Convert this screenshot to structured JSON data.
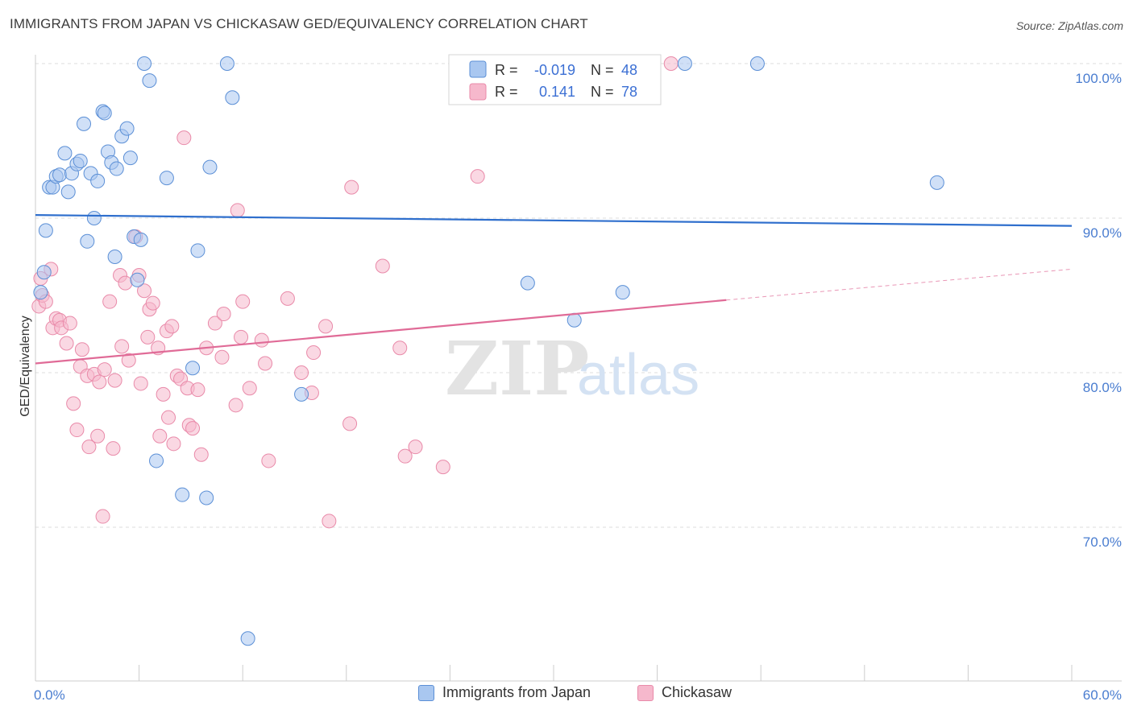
{
  "header": {
    "title": "IMMIGRANTS FROM JAPAN VS CHICKASAW GED/EQUIVALENCY CORRELATION CHART",
    "source": "Source: ZipAtlas.com"
  },
  "legend_top": {
    "rows": [
      {
        "r_label": "R =",
        "r_value": "-0.019",
        "n_label": "N =",
        "n_value": "48"
      },
      {
        "r_label": "R =",
        "r_value": "0.141",
        "n_label": "N =",
        "n_value": "78"
      }
    ]
  },
  "legend_bottom": {
    "items": [
      "Immigrants from Japan",
      "Chickasaw"
    ]
  },
  "watermark": {
    "zip": "ZIP",
    "atlas": "atlas"
  },
  "colors": {
    "japan_fill": "#a9c7f0",
    "japan_stroke": "#5b8fd6",
    "japan_line": "#2f6fcd",
    "chickasaw_fill": "#f6b8cc",
    "chickasaw_stroke": "#e98aa9",
    "chickasaw_line": "#e06b97",
    "tick_text": "#4a7dd0",
    "grid": "#dddddd"
  },
  "chart_data": {
    "type": "scatter",
    "title": "IMMIGRANTS FROM JAPAN VS CHICKASAW GED/EQUIVALENCY CORRELATION CHART",
    "ylabel": "GED/Equivalency",
    "xlabel": "",
    "xlim": [
      0,
      60
    ],
    "ylim": [
      61.5,
      101.5
    ],
    "y_ticks": [
      70,
      80,
      90,
      100
    ],
    "y_tick_labels": [
      "70.0%",
      "80.0%",
      "90.0%",
      "100.0%"
    ],
    "x_tick_labels": [
      "0.0%",
      "60.0%"
    ],
    "grid": true,
    "legend_position": "top-center",
    "series": [
      {
        "name": "Immigrants from Japan",
        "R": -0.019,
        "N": 48,
        "trend": {
          "x": [
            0,
            60
          ],
          "y": [
            90.2,
            89.5
          ]
        },
        "points": [
          [
            0.3,
            85.2
          ],
          [
            0.5,
            86.5
          ],
          [
            0.6,
            89.2
          ],
          [
            0.8,
            92.0
          ],
          [
            1.0,
            92.0
          ],
          [
            1.2,
            92.7
          ],
          [
            1.4,
            92.8
          ],
          [
            1.7,
            94.2
          ],
          [
            1.9,
            91.7
          ],
          [
            2.1,
            92.9
          ],
          [
            2.4,
            93.5
          ],
          [
            2.6,
            93.7
          ],
          [
            2.8,
            96.1
          ],
          [
            3.0,
            88.5
          ],
          [
            3.2,
            92.9
          ],
          [
            3.4,
            90.0
          ],
          [
            3.6,
            92.4
          ],
          [
            3.9,
            96.9
          ],
          [
            4.0,
            96.8
          ],
          [
            4.2,
            94.3
          ],
          [
            4.4,
            93.6
          ],
          [
            4.6,
            87.5
          ],
          [
            4.7,
            93.2
          ],
          [
            5.0,
            95.3
          ],
          [
            5.3,
            95.8
          ],
          [
            5.5,
            93.9
          ],
          [
            5.7,
            88.8
          ],
          [
            5.9,
            86.0
          ],
          [
            6.1,
            88.6
          ],
          [
            6.3,
            100.0
          ],
          [
            6.6,
            98.9
          ],
          [
            7.0,
            74.3
          ],
          [
            7.6,
            92.6
          ],
          [
            8.5,
            72.1
          ],
          [
            9.1,
            80.3
          ],
          [
            9.4,
            87.9
          ],
          [
            9.9,
            71.9
          ],
          [
            10.1,
            93.3
          ],
          [
            11.1,
            100.0
          ],
          [
            11.4,
            97.8
          ],
          [
            12.3,
            62.8
          ],
          [
            15.4,
            78.6
          ],
          [
            28.5,
            85.8
          ],
          [
            31.2,
            83.4
          ],
          [
            34.0,
            85.2
          ],
          [
            37.6,
            100.0
          ],
          [
            41.8,
            100.0
          ],
          [
            52.2,
            92.3
          ]
        ]
      },
      {
        "name": "Chickasaw",
        "R": 0.141,
        "N": 78,
        "trend": {
          "x": [
            0,
            40
          ],
          "y": [
            80.6,
            84.7
          ]
        },
        "trend_dashed": {
          "x": [
            40,
            60
          ],
          "y": [
            84.7,
            86.7
          ]
        },
        "points": [
          [
            0.2,
            84.3
          ],
          [
            0.3,
            86.1
          ],
          [
            0.4,
            85.0
          ],
          [
            0.6,
            84.6
          ],
          [
            0.9,
            86.7
          ],
          [
            1.0,
            82.9
          ],
          [
            1.2,
            83.5
          ],
          [
            1.4,
            83.4
          ],
          [
            1.5,
            82.9
          ],
          [
            1.8,
            81.9
          ],
          [
            2.0,
            83.2
          ],
          [
            2.2,
            78.0
          ],
          [
            2.4,
            76.3
          ],
          [
            2.6,
            80.4
          ],
          [
            2.7,
            81.5
          ],
          [
            3.0,
            79.8
          ],
          [
            3.1,
            75.2
          ],
          [
            3.4,
            79.9
          ],
          [
            3.6,
            75.9
          ],
          [
            3.7,
            79.4
          ],
          [
            3.9,
            70.7
          ],
          [
            4.0,
            80.2
          ],
          [
            4.3,
            84.6
          ],
          [
            4.5,
            75.1
          ],
          [
            4.6,
            79.5
          ],
          [
            4.9,
            86.3
          ],
          [
            5.0,
            81.7
          ],
          [
            5.2,
            85.8
          ],
          [
            5.4,
            80.8
          ],
          [
            5.8,
            88.8
          ],
          [
            6.0,
            86.3
          ],
          [
            6.1,
            79.3
          ],
          [
            6.3,
            85.3
          ],
          [
            6.5,
            82.3
          ],
          [
            6.6,
            84.1
          ],
          [
            6.8,
            84.5
          ],
          [
            7.1,
            81.6
          ],
          [
            7.2,
            75.9
          ],
          [
            7.4,
            78.6
          ],
          [
            7.6,
            82.7
          ],
          [
            7.7,
            77.1
          ],
          [
            7.9,
            83.0
          ],
          [
            8.0,
            75.4
          ],
          [
            8.2,
            79.8
          ],
          [
            8.4,
            79.6
          ],
          [
            8.6,
            95.2
          ],
          [
            8.8,
            79.0
          ],
          [
            8.9,
            76.6
          ],
          [
            9.1,
            76.4
          ],
          [
            9.4,
            78.9
          ],
          [
            9.6,
            74.7
          ],
          [
            9.9,
            81.6
          ],
          [
            10.4,
            83.2
          ],
          [
            10.8,
            81.0
          ],
          [
            10.9,
            83.8
          ],
          [
            11.6,
            77.9
          ],
          [
            11.7,
            90.5
          ],
          [
            11.9,
            82.3
          ],
          [
            12.0,
            84.6
          ],
          [
            12.4,
            79.0
          ],
          [
            13.1,
            82.1
          ],
          [
            13.3,
            80.6
          ],
          [
            13.5,
            74.3
          ],
          [
            14.6,
            84.8
          ],
          [
            15.4,
            80.0
          ],
          [
            16.0,
            78.7
          ],
          [
            16.1,
            81.3
          ],
          [
            16.8,
            83.0
          ],
          [
            17.0,
            70.4
          ],
          [
            18.2,
            76.7
          ],
          [
            18.3,
            92.0
          ],
          [
            20.1,
            86.9
          ],
          [
            21.1,
            81.6
          ],
          [
            21.4,
            74.6
          ],
          [
            22.0,
            75.2
          ],
          [
            23.6,
            73.9
          ],
          [
            25.6,
            92.7
          ],
          [
            36.8,
            100.0
          ]
        ]
      }
    ]
  }
}
